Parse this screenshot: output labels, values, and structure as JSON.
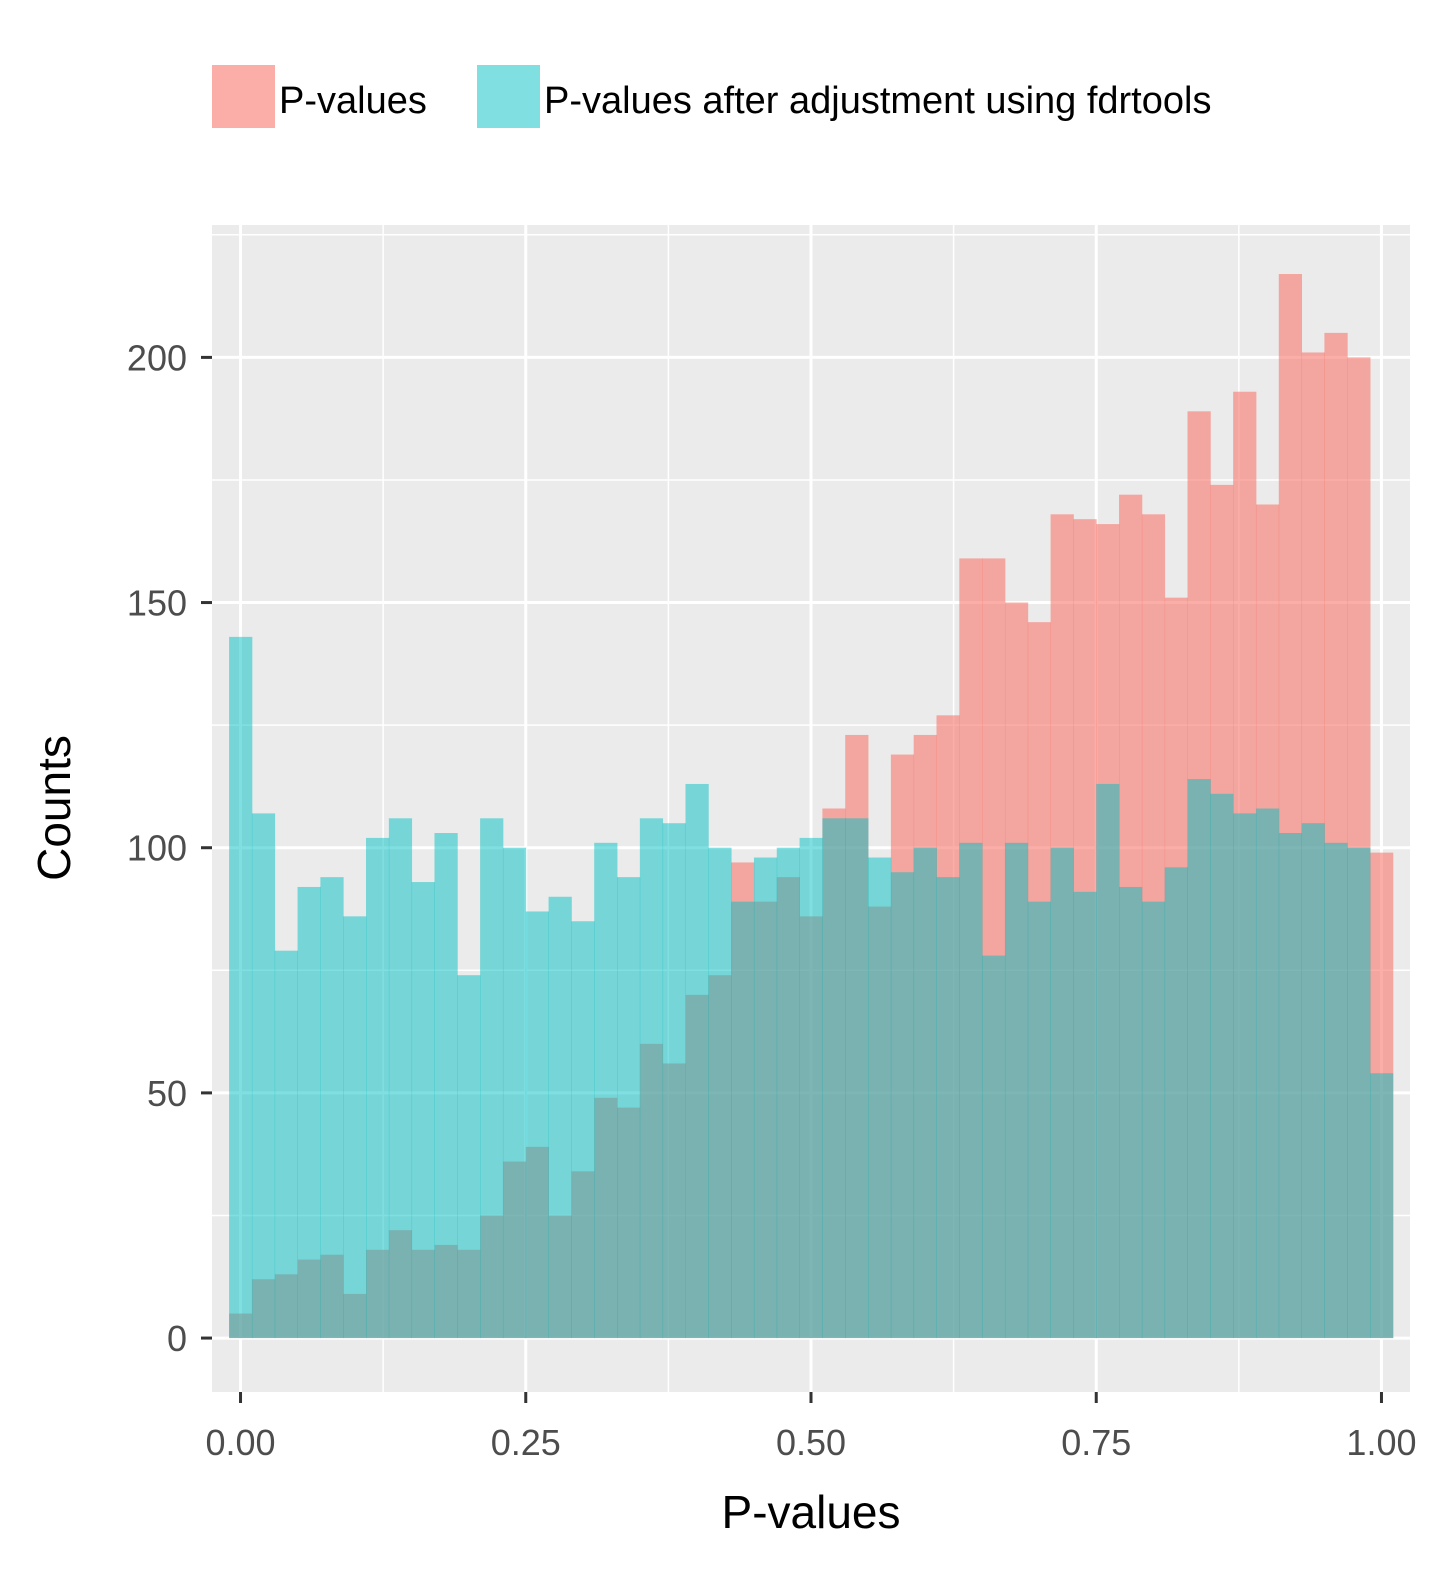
{
  "chart_data": {
    "type": "histogram",
    "xlabel": "P-values",
    "ylabel": "Counts",
    "xlim": [
      -0.025,
      1.025
    ],
    "ylim": [
      -11,
      227
    ],
    "x_ticks": [
      0,
      0.25,
      0.5,
      0.75,
      1
    ],
    "x_tick_labels": [
      "0.00",
      "0.25",
      "0.50",
      "0.75",
      "1.00"
    ],
    "y_ticks": [
      0,
      50,
      100,
      150,
      200
    ],
    "y_tick_labels": [
      "0",
      "50",
      "100",
      "150",
      "200"
    ],
    "grid": true,
    "legend_position": "top",
    "bin_start": -0.01,
    "bin_width": 0.02,
    "series": [
      {
        "name": "P-values",
        "color": "#F8766D",
        "values": [
          5,
          12,
          13,
          16,
          17,
          9,
          18,
          22,
          18,
          19,
          18,
          25,
          36,
          39,
          25,
          34,
          49,
          47,
          60,
          56,
          70,
          74,
          97,
          89,
          94,
          86,
          108,
          123,
          88,
          119,
          123,
          127,
          159,
          159,
          150,
          146,
          168,
          167,
          166,
          172,
          168,
          151,
          189,
          174,
          193,
          170,
          217,
          201,
          205,
          200,
          99
        ]
      },
      {
        "name": "P-values after adjustment using fdrtools",
        "color": "#00BFC4",
        "values": [
          143,
          107,
          79,
          92,
          94,
          86,
          102,
          106,
          93,
          103,
          74,
          106,
          100,
          87,
          90,
          85,
          101,
          94,
          106,
          105,
          113,
          100,
          89,
          98,
          100,
          102,
          106,
          106,
          98,
          95,
          100,
          94,
          101,
          78,
          101,
          89,
          100,
          91,
          113,
          92,
          89,
          96,
          114,
          111,
          107,
          108,
          103,
          105,
          101,
          100,
          54
        ]
      }
    ]
  }
}
